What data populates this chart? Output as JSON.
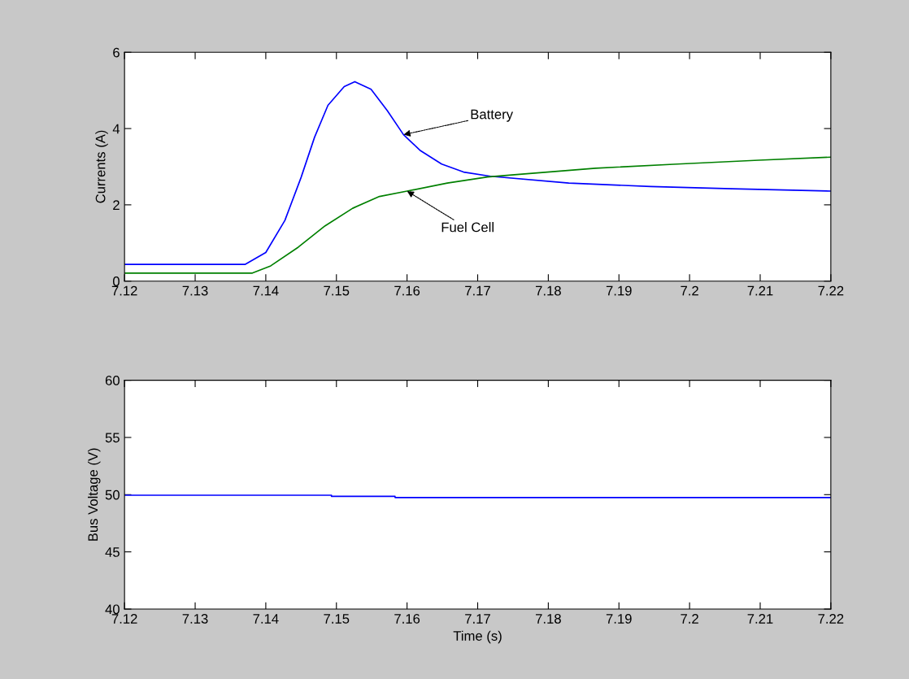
{
  "chart_data": [
    {
      "type": "line",
      "ylabel": "Currents (A)",
      "xlim": [
        7.12,
        7.22
      ],
      "ylim": [
        0,
        6
      ],
      "xticks": [
        7.12,
        7.13,
        7.14,
        7.15,
        7.16,
        7.17,
        7.18,
        7.19,
        7.2,
        7.21,
        7.22
      ],
      "yticks": [
        0,
        2,
        4,
        6
      ],
      "grid": false,
      "series": [
        {
          "color": "#0000ff",
          "x": [
            7.12,
            7.1371,
            7.14,
            7.1427,
            7.145,
            7.1469,
            7.1488,
            7.1511,
            7.1526,
            7.1549,
            7.1572,
            7.1595,
            7.1619,
            7.1649,
            7.168,
            7.1718,
            7.1829,
            7.1945,
            7.206,
            7.22
          ],
          "values": [
            0.44,
            0.44,
            0.75,
            1.59,
            2.72,
            3.77,
            4.61,
            5.1,
            5.23,
            5.03,
            4.47,
            3.84,
            3.42,
            3.07,
            2.86,
            2.75,
            2.57,
            2.48,
            2.42,
            2.36
          ]
        },
        {
          "color": "#008000",
          "x": [
            7.12,
            7.1381,
            7.1407,
            7.1446,
            7.1484,
            7.1523,
            7.1561,
            7.16,
            7.1657,
            7.1714,
            7.1752,
            7.1867,
            7.1983,
            7.2098,
            7.22
          ],
          "values": [
            0.21,
            0.21,
            0.4,
            0.89,
            1.45,
            1.91,
            2.22,
            2.36,
            2.57,
            2.73,
            2.79,
            2.96,
            3.07,
            3.17,
            3.25
          ]
        }
      ],
      "annotations": [
        {
          "text": "Battery",
          "x": 7.1595,
          "y": 3.84
        },
        {
          "text": "Fuel Cell",
          "x": 7.16,
          "y": 2.36
        }
      ]
    },
    {
      "type": "line",
      "xlabel": "Time (s)",
      "ylabel": "Bus Voltage (V)",
      "xlim": [
        7.12,
        7.22
      ],
      "ylim": [
        40,
        60
      ],
      "xticks": [
        7.12,
        7.13,
        7.14,
        7.15,
        7.16,
        7.17,
        7.18,
        7.19,
        7.2,
        7.21,
        7.22
      ],
      "yticks": [
        40,
        45,
        50,
        55,
        60
      ],
      "grid": false,
      "series": [
        {
          "color": "#0000ff",
          "x": [
            7.12,
            7.1493,
            7.1493,
            7.1583,
            7.1583,
            7.22
          ],
          "values": [
            49.95,
            49.95,
            49.85,
            49.85,
            49.75,
            49.75
          ]
        }
      ]
    }
  ]
}
